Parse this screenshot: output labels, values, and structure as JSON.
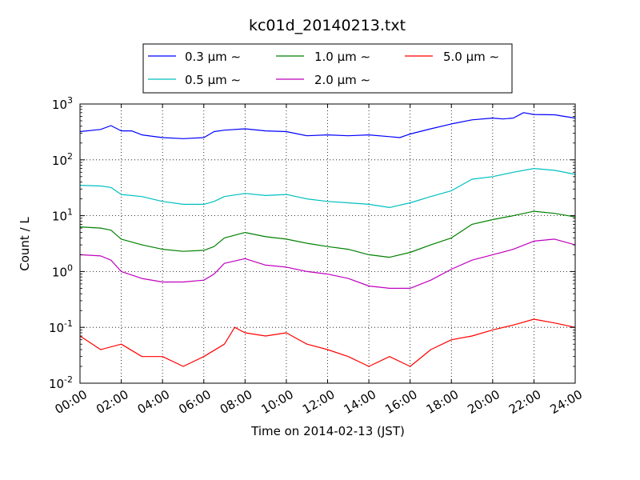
{
  "chart_data": {
    "type": "line",
    "title": "kc01d_20140213.txt",
    "xlabel": "Time on 2014-02-13 (JST)",
    "ylabel": "Count / L",
    "yscale": "log",
    "xlim": [
      0,
      24
    ],
    "ylim": [
      0.01,
      1000
    ],
    "x_ticks": [
      "00:00",
      "02:00",
      "04:00",
      "06:00",
      "08:00",
      "10:00",
      "12:00",
      "14:00",
      "16:00",
      "18:00",
      "20:00",
      "22:00",
      "24:00"
    ],
    "y_ticks": [
      {
        "value": 0.01,
        "base": "10",
        "exp": "-2"
      },
      {
        "value": 0.1,
        "base": "10",
        "exp": "-1"
      },
      {
        "value": 1,
        "base": "10",
        "exp": "0"
      },
      {
        "value": 10,
        "base": "10",
        "exp": "1"
      },
      {
        "value": 100,
        "base": "10",
        "exp": "2"
      },
      {
        "value": 1000,
        "base": "10",
        "exp": "3"
      }
    ],
    "grid": true,
    "legend_position": "top-center (above plot)",
    "series": [
      {
        "name": "0.3 μm ∼",
        "color": "#0000ff",
        "x": [
          0,
          1,
          1.5,
          2,
          2.5,
          3,
          4,
          5,
          6,
          6.5,
          7,
          8,
          9,
          10,
          11,
          12,
          13,
          14,
          15,
          15.5,
          16,
          17,
          18,
          19,
          20,
          20.5,
          21,
          21.5,
          22,
          23,
          24
        ],
        "values": [
          320,
          350,
          410,
          330,
          330,
          280,
          250,
          240,
          250,
          320,
          340,
          360,
          330,
          320,
          270,
          280,
          270,
          280,
          260,
          250,
          290,
          360,
          440,
          520,
          560,
          540,
          560,
          700,
          650,
          640,
          560
        ]
      },
      {
        "name": "0.5 μm ∼",
        "color": "#00bfbf",
        "x": [
          0,
          1,
          1.5,
          2,
          3,
          4,
          5,
          6,
          6.5,
          7,
          8,
          9,
          10,
          11,
          12,
          13,
          14,
          15,
          16,
          17,
          18,
          19,
          20,
          21,
          22,
          23,
          24
        ],
        "values": [
          35,
          34,
          32,
          24,
          22,
          18,
          16,
          16,
          18,
          22,
          25,
          23,
          24,
          20,
          18,
          17,
          16,
          14,
          17,
          22,
          28,
          45,
          50,
          60,
          70,
          65,
          55
        ]
      },
      {
        "name": "1.0 μm ∼",
        "color": "#008000",
        "x": [
          0,
          1,
          1.5,
          2,
          3,
          4,
          5,
          6,
          6.5,
          7,
          8,
          9,
          10,
          11,
          12,
          13,
          14,
          15,
          16,
          17,
          18,
          19,
          20,
          21,
          22,
          23,
          24
        ],
        "values": [
          6.3,
          6.0,
          5.5,
          3.8,
          3.0,
          2.5,
          2.3,
          2.4,
          2.8,
          4.0,
          5.0,
          4.2,
          3.8,
          3.2,
          2.8,
          2.5,
          2.0,
          1.8,
          2.2,
          3.0,
          4.0,
          7.0,
          8.5,
          10,
          12,
          11,
          9.5
        ]
      },
      {
        "name": "2.0 μm ∼",
        "color": "#bf00bf",
        "x": [
          0,
          1,
          1.5,
          2,
          3,
          4,
          5,
          6,
          6.5,
          7,
          8,
          9,
          10,
          11,
          12,
          13,
          14,
          15,
          16,
          17,
          18,
          19,
          20,
          21,
          22,
          23,
          24
        ],
        "values": [
          2.0,
          1.9,
          1.6,
          1.0,
          0.75,
          0.65,
          0.65,
          0.7,
          0.9,
          1.4,
          1.7,
          1.3,
          1.2,
          1.0,
          0.9,
          0.75,
          0.55,
          0.5,
          0.5,
          0.7,
          1.1,
          1.6,
          2.0,
          2.5,
          3.5,
          3.8,
          3.0
        ]
      },
      {
        "name": "5.0 μm ∼",
        "color": "#ff0000",
        "x": [
          0,
          1,
          2,
          3,
          4,
          5,
          6,
          7,
          7.5,
          8,
          9,
          10,
          11,
          12,
          13,
          14,
          15,
          16,
          17,
          18,
          19,
          20,
          21,
          22,
          23,
          24
        ],
        "values": [
          0.07,
          0.04,
          0.05,
          0.03,
          0.03,
          0.02,
          0.03,
          0.05,
          0.1,
          0.08,
          0.07,
          0.08,
          0.05,
          0.04,
          0.03,
          0.02,
          0.03,
          0.02,
          0.04,
          0.06,
          0.07,
          0.09,
          0.11,
          0.14,
          0.12,
          0.1
        ]
      }
    ]
  }
}
